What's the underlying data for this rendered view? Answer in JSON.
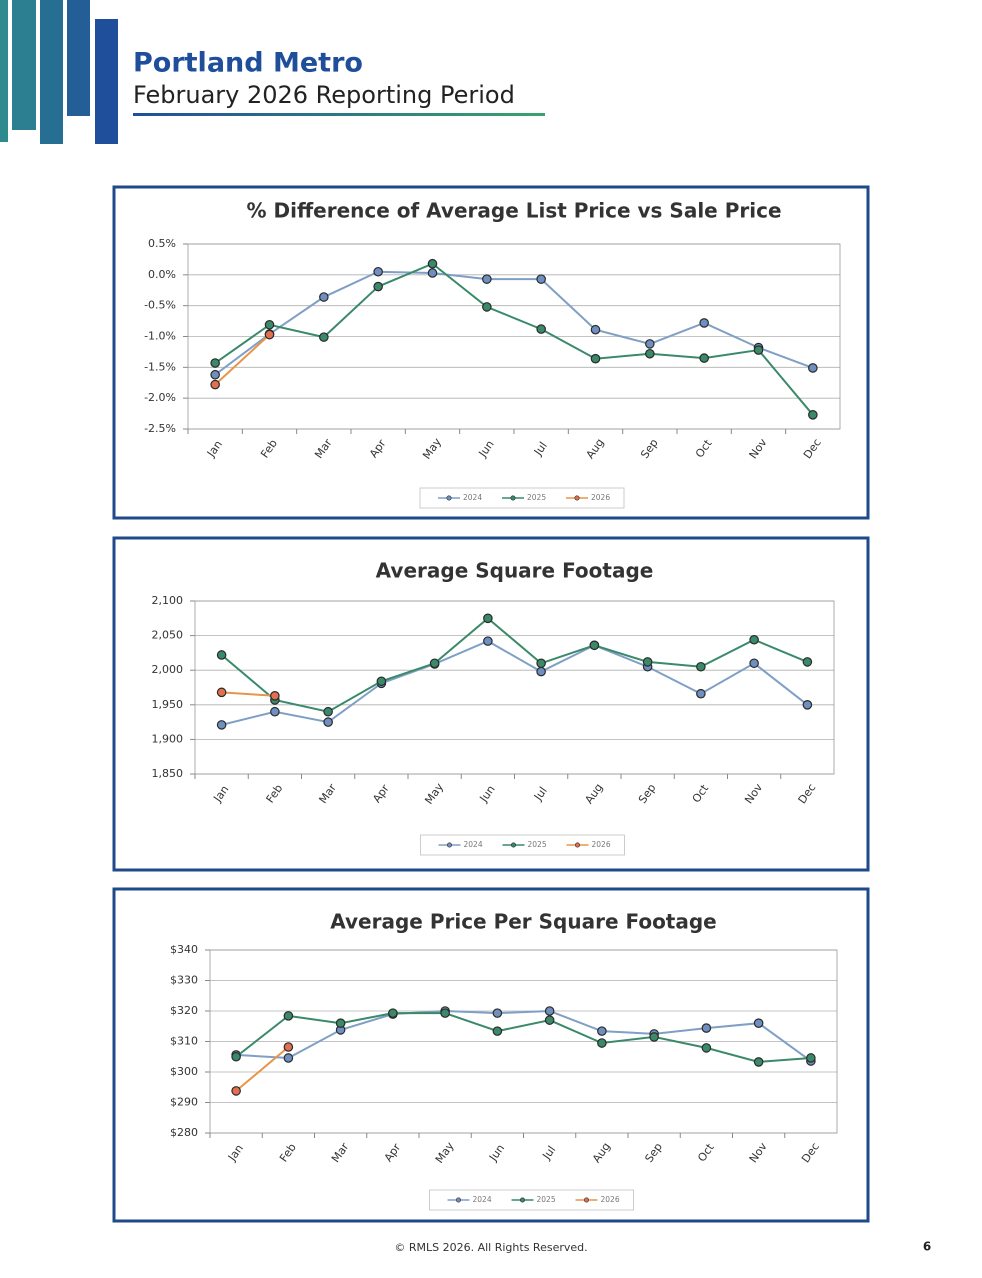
{
  "header": {
    "title": "Portland Metro",
    "subtitle": "February 2026 Reporting Period"
  },
  "footer": {
    "copyright": "© RMLS 2026. All Rights Reserved.",
    "page": "6"
  },
  "chart_data": [
    {
      "type": "line",
      "title": "% Difference of Average List Price vs Sale Price",
      "categories": [
        "Jan",
        "Feb",
        "Mar",
        "Apr",
        "May",
        "Jun",
        "Jul",
        "Aug",
        "Sep",
        "Oct",
        "Nov",
        "Dec"
      ],
      "series": [
        {
          "name": "2024",
          "color": "#7f9fc6",
          "marker_color": "#6f8fc0",
          "values": [
            -1.62,
            -0.96,
            -0.36,
            0.05,
            0.03,
            -0.07,
            -0.07,
            -0.89,
            -1.12,
            -0.78,
            -1.18,
            -1.51
          ]
        },
        {
          "name": "2025",
          "color": "#3a8a6a",
          "marker_color": "#3a8a6a",
          "values": [
            -1.43,
            -0.81,
            -1.01,
            -0.19,
            0.18,
            -0.52,
            -0.88,
            -1.36,
            -1.28,
            -1.35,
            -1.22,
            -2.27
          ]
        },
        {
          "name": "2026",
          "color": "#e8954a",
          "marker_color": "#e0704f",
          "values": [
            -1.78,
            -0.97,
            null,
            null,
            null,
            null,
            null,
            null,
            null,
            null,
            null,
            null
          ]
        }
      ],
      "ylim": [
        -2.5,
        0.5
      ],
      "yticks": [
        {
          "value": -2.5,
          "label": "-2.5%"
        },
        {
          "value": -2.0,
          "label": "-2.0%"
        },
        {
          "value": -1.5,
          "label": "-1.5%"
        },
        {
          "value": -1.0,
          "label": "-1.0%"
        },
        {
          "value": -0.5,
          "label": "-0.5%"
        },
        {
          "value": 0.0,
          "label": "0.0%"
        },
        {
          "value": 0.5,
          "label": "0.5%"
        }
      ],
      "grid": true,
      "legend": "bottom"
    },
    {
      "type": "line",
      "title": "Average Square Footage",
      "categories": [
        "Jan",
        "Feb",
        "Mar",
        "Apr",
        "May",
        "Jun",
        "Jul",
        "Aug",
        "Sep",
        "Oct",
        "Nov",
        "Dec"
      ],
      "series": [
        {
          "name": "2024",
          "color": "#7f9fc6",
          "marker_color": "#6f8fc0",
          "values": [
            1921,
            1940,
            1925,
            1981,
            2009,
            2042,
            1998,
            2036,
            2005,
            1966,
            2010,
            1950
          ]
        },
        {
          "name": "2025",
          "color": "#3a8a6a",
          "marker_color": "#3a8a6a",
          "values": [
            2022,
            1957,
            1940,
            1984,
            2010,
            2075,
            2010,
            2036,
            2012,
            2005,
            2044,
            2012
          ]
        },
        {
          "name": "2026",
          "color": "#e8954a",
          "marker_color": "#e0704f",
          "values": [
            1968,
            1963,
            null,
            null,
            null,
            null,
            null,
            null,
            null,
            null,
            null,
            null
          ]
        }
      ],
      "ylim": [
        1850,
        2100
      ],
      "yticks": [
        {
          "value": 1850,
          "label": "1,850"
        },
        {
          "value": 1900,
          "label": "1,900"
        },
        {
          "value": 1950,
          "label": "1,950"
        },
        {
          "value": 2000,
          "label": "2,000"
        },
        {
          "value": 2050,
          "label": "2,050"
        },
        {
          "value": 2100,
          "label": "2,100"
        }
      ],
      "grid": true,
      "legend": "bottom"
    },
    {
      "type": "line",
      "title": "Average Price Per Square Footage",
      "categories": [
        "Jan",
        "Feb",
        "Mar",
        "Apr",
        "May",
        "Jun",
        "Jul",
        "Aug",
        "Sep",
        "Oct",
        "Nov",
        "Dec"
      ],
      "series": [
        {
          "name": "2024",
          "color": "#7f9fc6",
          "marker_color": "#6f8fc0",
          "values": [
            305.6,
            304.6,
            313.8,
            319,
            320,
            319.3,
            320,
            313.4,
            312.5,
            314.4,
            316,
            303.6
          ]
        },
        {
          "name": "2025",
          "color": "#3a8a6a",
          "marker_color": "#3a8a6a",
          "values": [
            305,
            318.4,
            316,
            319.3,
            319.3,
            313.4,
            317,
            309.5,
            311.5,
            307.9,
            303.3,
            304.6
          ]
        },
        {
          "name": "2026",
          "color": "#e8954a",
          "marker_color": "#e0704f",
          "values": [
            293.8,
            308.2,
            null,
            null,
            null,
            null,
            null,
            null,
            null,
            null,
            null,
            null
          ]
        }
      ],
      "ylim": [
        280,
        340
      ],
      "yticks": [
        {
          "value": 280,
          "label": "$280"
        },
        {
          "value": 290,
          "label": "$290"
        },
        {
          "value": 300,
          "label": "$300"
        },
        {
          "value": 310,
          "label": "$310"
        },
        {
          "value": 320,
          "label": "$320"
        },
        {
          "value": 330,
          "label": "$330"
        },
        {
          "value": 340,
          "label": "$340"
        }
      ],
      "grid": true,
      "legend": "bottom"
    }
  ]
}
